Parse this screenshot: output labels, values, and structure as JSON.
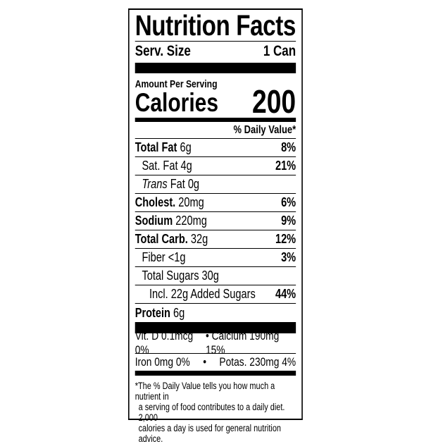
{
  "title": "Nutrition Facts",
  "serving": {
    "label": "Serv. Size",
    "value": "1 Can"
  },
  "amount_per_serving": "Amount Per Serving",
  "calories": {
    "label": "Calories",
    "value": "200"
  },
  "daily_value_header": "% Daily Value*",
  "nutrients": [
    {
      "name": "Total Fat",
      "amount": "6g",
      "dv": "8%"
    },
    {
      "name": "Sat. Fat",
      "amount": "4g",
      "dv": "21%"
    },
    {
      "name": "Trans",
      "amount": "Fat 0g",
      "dv": ""
    },
    {
      "name": "Cholest.",
      "amount": "20mg",
      "dv": "6%"
    },
    {
      "name": "Sodium",
      "amount": "220mg",
      "dv": "9%"
    },
    {
      "name": "Total Carb.",
      "amount": "32g",
      "dv": "12%"
    },
    {
      "name": "Fiber",
      "amount": "<1g",
      "dv": "3%"
    },
    {
      "name": "Total Sugars",
      "amount": "30g",
      "dv": ""
    },
    {
      "name": "Incl. 22g Added Sugars",
      "amount": "",
      "dv": "44%"
    },
    {
      "name": "Protein",
      "amount": "6g",
      "dv": ""
    }
  ],
  "minerals": {
    "row1_left": "Vit. D 0.1mcg 0%",
    "row1_right": "• Calcium 190mg 15%",
    "row2_left": "Iron 0mg 0%",
    "row2_bullet": "•",
    "row2_right": "Potas. 230mg 4%"
  },
  "footnote": [
    "*The % Daily Value tells you how much a nutrient in",
    "a serving of food contributes to a daily diet. 2,000",
    "calories a day is used for general nutrition advice."
  ]
}
